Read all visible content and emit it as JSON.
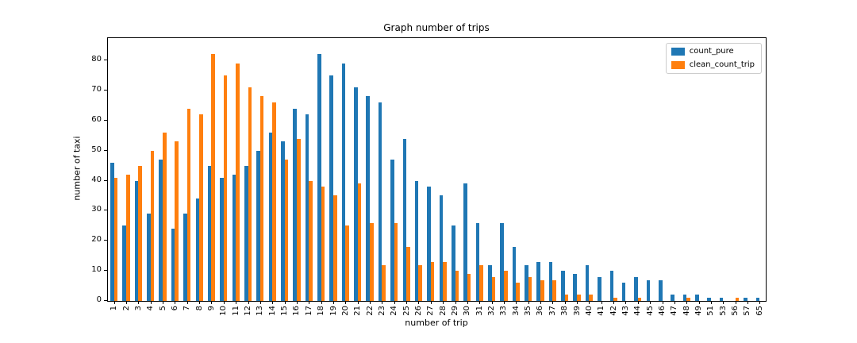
{
  "chart_data": {
    "type": "bar",
    "title": "Graph number of trips",
    "xlabel": "number of trip",
    "ylabel": "number of taxi",
    "categories": [
      "1",
      "2",
      "3",
      "4",
      "5",
      "6",
      "7",
      "8",
      "9",
      "10",
      "11",
      "12",
      "13",
      "14",
      "15",
      "16",
      "17",
      "18",
      "19",
      "20",
      "21",
      "22",
      "23",
      "24",
      "25",
      "26",
      "27",
      "28",
      "29",
      "30",
      "31",
      "32",
      "33",
      "34",
      "35",
      "36",
      "37",
      "38",
      "39",
      "40",
      "41",
      "42",
      "43",
      "44",
      "45",
      "46",
      "47",
      "48",
      "49",
      "51",
      "53",
      "56",
      "57",
      "65"
    ],
    "series": [
      {
        "name": "count_pure",
        "color": "#1f77b4",
        "values": [
          46,
          25,
          40,
          29,
          47,
          24,
          29,
          34,
          45,
          41,
          42,
          45,
          50,
          56,
          53,
          64,
          62,
          82,
          75,
          79,
          71,
          68,
          66,
          47,
          54,
          40,
          38,
          35,
          25,
          39,
          26,
          12,
          26,
          18,
          12,
          13,
          13,
          10,
          9,
          12,
          8,
          10,
          6,
          8,
          7,
          7,
          2,
          2,
          2,
          1,
          1,
          0,
          1,
          1
        ]
      },
      {
        "name": "clean_count_trip",
        "color": "#ff7f0e",
        "values": [
          41,
          42,
          45,
          50,
          56,
          53,
          64,
          62,
          82,
          75,
          79,
          71,
          68,
          66,
          47,
          54,
          40,
          38,
          35,
          25,
          39,
          26,
          12,
          26,
          18,
          12,
          13,
          13,
          10,
          9,
          12,
          8,
          10,
          6,
          8,
          7,
          7,
          2,
          2,
          2,
          0,
          1,
          0,
          1,
          0,
          0,
          0,
          1,
          0,
          0,
          0,
          1,
          0,
          0
        ]
      }
    ],
    "yticks": [
      0,
      10,
      20,
      30,
      40,
      50,
      60,
      70,
      80
    ],
    "ylim": [
      0,
      87.4
    ],
    "grid": false,
    "legend_position": "upper right"
  },
  "legend": {
    "items": [
      {
        "label": "count_pure",
        "color": "#1f77b4"
      },
      {
        "label": "clean_count_trip",
        "color": "#ff7f0e"
      }
    ]
  }
}
